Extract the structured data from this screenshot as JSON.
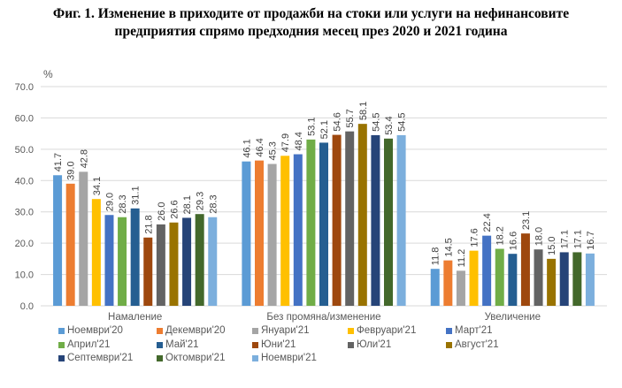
{
  "title_line1": "Фиг. 1. Изменение в приходите от продажби на стоки или услуги на нефинансовите",
  "title_line2": "предприятия спрямо предходния месец през 2020 и 2021 година",
  "chart_data": {
    "type": "bar",
    "title": "Фиг. 1. Изменение в приходите от продажби на стоки или услуги на нефинансовите предприятия спрямо предходния месец през 2020 и 2021 година",
    "ylabel": "%",
    "xlabel": "",
    "ylim": [
      0,
      70
    ],
    "yticks": [
      "0.0",
      "10.0",
      "20.0",
      "30.0",
      "40.0",
      "50.0",
      "60.0",
      "70.0"
    ],
    "grid": true,
    "legend_position": "bottom",
    "categories": [
      "Намаление",
      "Без промяна/изменение",
      "Увеличение"
    ],
    "series": [
      {
        "name": "Ноември'20",
        "color": "#5B9BD5",
        "values": [
          41.7,
          46.1,
          11.8
        ]
      },
      {
        "name": "Декември'20",
        "color": "#ED7D31",
        "values": [
          39.0,
          46.4,
          14.5
        ]
      },
      {
        "name": "Януари'21",
        "color": "#A5A5A5",
        "values": [
          42.8,
          45.3,
          11.2
        ]
      },
      {
        "name": "Февруари'21",
        "color": "#FFC000",
        "values": [
          34.1,
          47.9,
          17.6
        ]
      },
      {
        "name": "Март'21",
        "color": "#4472C4",
        "values": [
          29.0,
          48.4,
          22.4
        ]
      },
      {
        "name": "Април'21",
        "color": "#70AD47",
        "values": [
          28.3,
          53.1,
          18.2
        ]
      },
      {
        "name": "Май'21",
        "color": "#255E91",
        "values": [
          31.1,
          52.1,
          16.6
        ]
      },
      {
        "name": "Юни'21",
        "color": "#9E480E",
        "values": [
          21.8,
          54.6,
          23.1
        ]
      },
      {
        "name": "Юли'21",
        "color": "#636363",
        "values": [
          26.0,
          55.7,
          18.0
        ]
      },
      {
        "name": "Август'21",
        "color": "#997300",
        "values": [
          26.6,
          58.1,
          15.0
        ]
      },
      {
        "name": "Септември'21",
        "color": "#264478",
        "values": [
          28.1,
          54.5,
          17.1
        ]
      },
      {
        "name": "Октомври'21",
        "color": "#43682B",
        "values": [
          29.3,
          53.4,
          17.1
        ]
      },
      {
        "name": "Ноември'21",
        "color": "#7CAFDD",
        "values": [
          28.3,
          54.5,
          16.7
        ]
      }
    ]
  }
}
